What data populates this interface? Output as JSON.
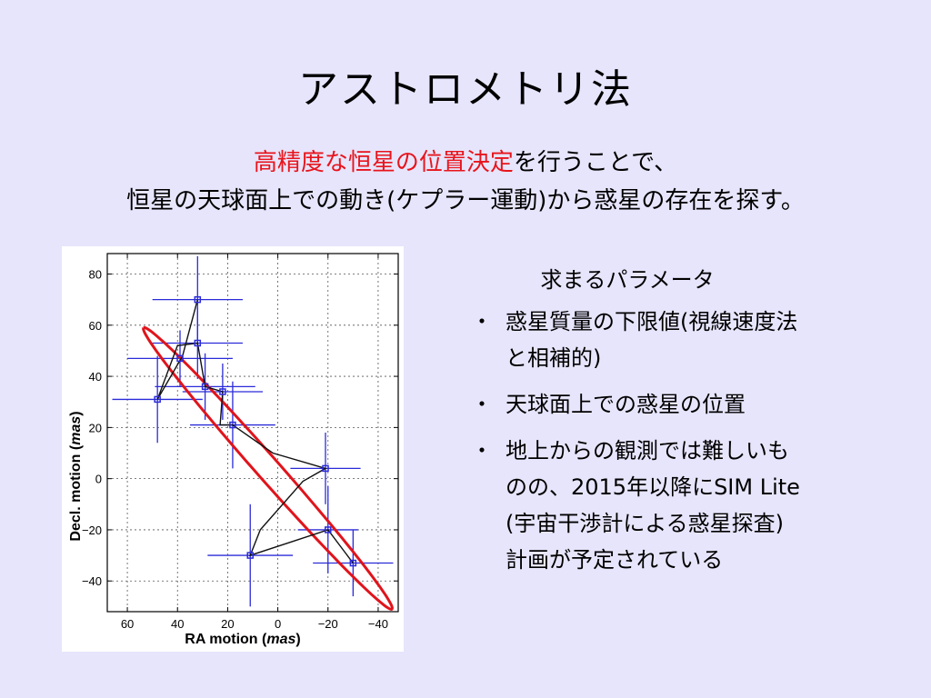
{
  "title": "アストロメトリ法",
  "subtitle": {
    "line1_red": "高精度な恒星の位置決定",
    "line1_rest": "を行うことで、",
    "line2": "恒星の天球面上での動き(ケプラー運動)から惑星の存在を探す。"
  },
  "params": {
    "heading": "求まるパラメータ",
    "bullet": "・",
    "items": [
      {
        "line1": "惑星質量の下限値(視線速度法",
        "line2": "と相補的)"
      },
      {
        "line1": "天球面上での惑星の位置"
      },
      {
        "line1": "地上からの観測では難しいも",
        "line2": "のの、2015年以降にSIM Lite",
        "line3": "(宇宙干渉計による惑星探査)",
        "line4": "計画が予定されている"
      }
    ]
  },
  "colors": {
    "background": "#e7e5fb",
    "highlight": "#e8141c",
    "errorbar": "#2b2bd9",
    "ellipse": "#e0141c",
    "path": "#111111"
  },
  "chart_data": {
    "type": "scatter",
    "xlabel_main": "RA motion",
    "xlabel_unit": "mas",
    "ylabel_main": "Decl. motion",
    "ylabel_unit": "mas",
    "xlim": [
      68,
      -48
    ],
    "ylim": [
      -52,
      88
    ],
    "xticks": [
      60,
      40,
      20,
      0,
      -20,
      -40
    ],
    "yticks": [
      80,
      60,
      40,
      20,
      0,
      -20,
      -40
    ],
    "xtick_labels": [
      "60",
      "40",
      "20",
      "0",
      "−20",
      "−40"
    ],
    "ytick_labels": [
      "80",
      "60",
      "40",
      "20",
      "0",
      "−20",
      "−40"
    ],
    "grid": true,
    "points": [
      {
        "x": 32,
        "y": 70,
        "xerr": 18,
        "yerr": 17
      },
      {
        "x": 32,
        "y": 53,
        "xerr": 18,
        "yerr": 14
      },
      {
        "x": 39,
        "y": 47,
        "xerr": 21,
        "yerr": 11
      },
      {
        "x": 48,
        "y": 31,
        "xerr": 18,
        "yerr": 17
      },
      {
        "x": 29,
        "y": 36,
        "xerr": 20,
        "yerr": 13
      },
      {
        "x": 22,
        "y": 34,
        "xerr": 16,
        "yerr": 11
      },
      {
        "x": 18,
        "y": 21,
        "xerr": 17,
        "yerr": 17
      },
      {
        "x": -19,
        "y": 4,
        "xerr": 14,
        "yerr": 14
      },
      {
        "x": -20,
        "y": -20,
        "xerr": 12,
        "yerr": 17
      },
      {
        "x": 11,
        "y": -30,
        "xerr": 17,
        "yerr": 20
      },
      {
        "x": -30,
        "y": -33,
        "xerr": 16,
        "yerr": 13
      }
    ],
    "model_path": [
      {
        "x": 32,
        "y": 70
      },
      {
        "x": 38,
        "y": 48
      },
      {
        "x": 48,
        "y": 31
      },
      {
        "x": 40,
        "y": 52
      },
      {
        "x": 32,
        "y": 53
      },
      {
        "x": 29,
        "y": 36
      },
      {
        "x": 22,
        "y": 34
      },
      {
        "x": 23,
        "y": 21
      },
      {
        "x": 18,
        "y": 21
      },
      {
        "x": 2,
        "y": 10
      },
      {
        "x": -19,
        "y": 4
      },
      {
        "x": -10,
        "y": -1
      },
      {
        "x": 7,
        "y": -20
      },
      {
        "x": 11,
        "y": -30
      },
      {
        "x": -20,
        "y": -20
      },
      {
        "x": -30,
        "y": -33
      }
    ],
    "ellipse": {
      "cx": 4,
      "cy": 4,
      "rx": 74,
      "ry": 4.5,
      "angle_deg": 48
    }
  }
}
